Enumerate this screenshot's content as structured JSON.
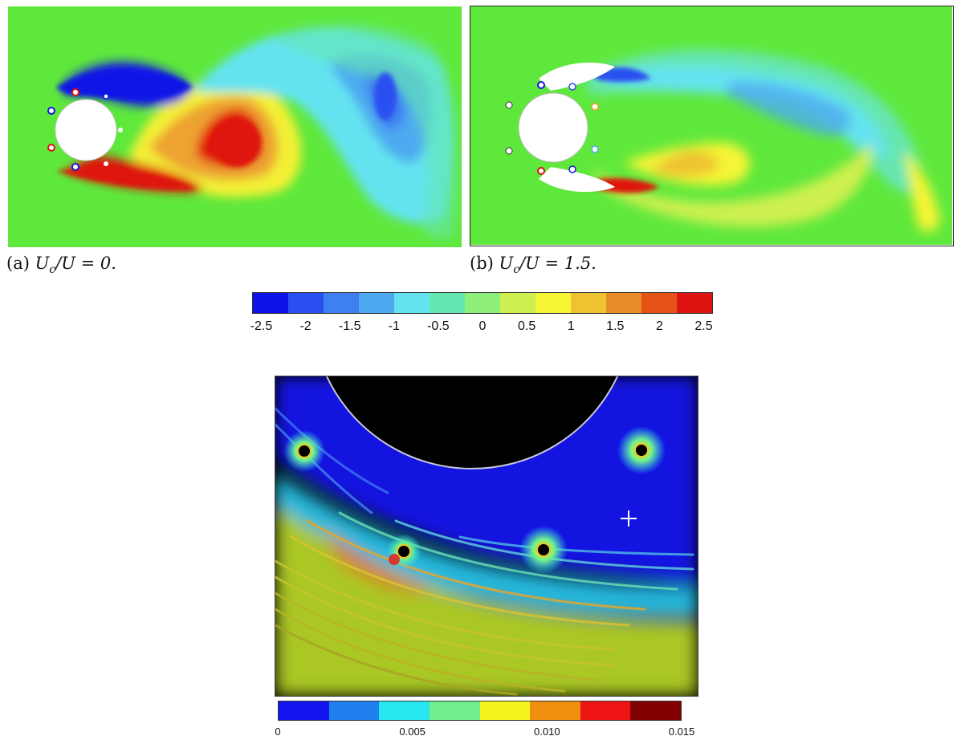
{
  "panels": {
    "a": {
      "caption_prefix": "(a) ",
      "caption_math": "U",
      "caption_sub": "c",
      "caption_rest": "/U = 0."
    },
    "b": {
      "caption_prefix": "(b) ",
      "caption_math": "U",
      "caption_sub": "c",
      "caption_rest": "/U = 1.5."
    }
  },
  "vorticity_colorbar": {
    "colors": [
      "#0d12e6",
      "#2a4ff0",
      "#3f80f0",
      "#4eaaf0",
      "#63e3f0",
      "#66e6b0",
      "#8ef07a",
      "#cdf050",
      "#f5f534",
      "#eec230",
      "#e88b26",
      "#e55218",
      "#de1410"
    ],
    "tick_labels": [
      "-2.5",
      "-2",
      "-1.5",
      "-1",
      "-0.5",
      "0",
      "0.5",
      "1",
      "1.5",
      "2",
      "2.5"
    ]
  },
  "velocity_colorbar": {
    "colors": [
      "#1414ee",
      "#1f7fee",
      "#27e6f0",
      "#72ef8c",
      "#f4f41e",
      "#f08e10",
      "#ee1414",
      "#800000"
    ],
    "tick_labels": [
      "0",
      "0.005",
      "0.010",
      "0.015"
    ]
  },
  "colors": {
    "background_field": "#61e83a",
    "cylinder": "#ffffff",
    "streamline_bg": "#000000"
  }
}
